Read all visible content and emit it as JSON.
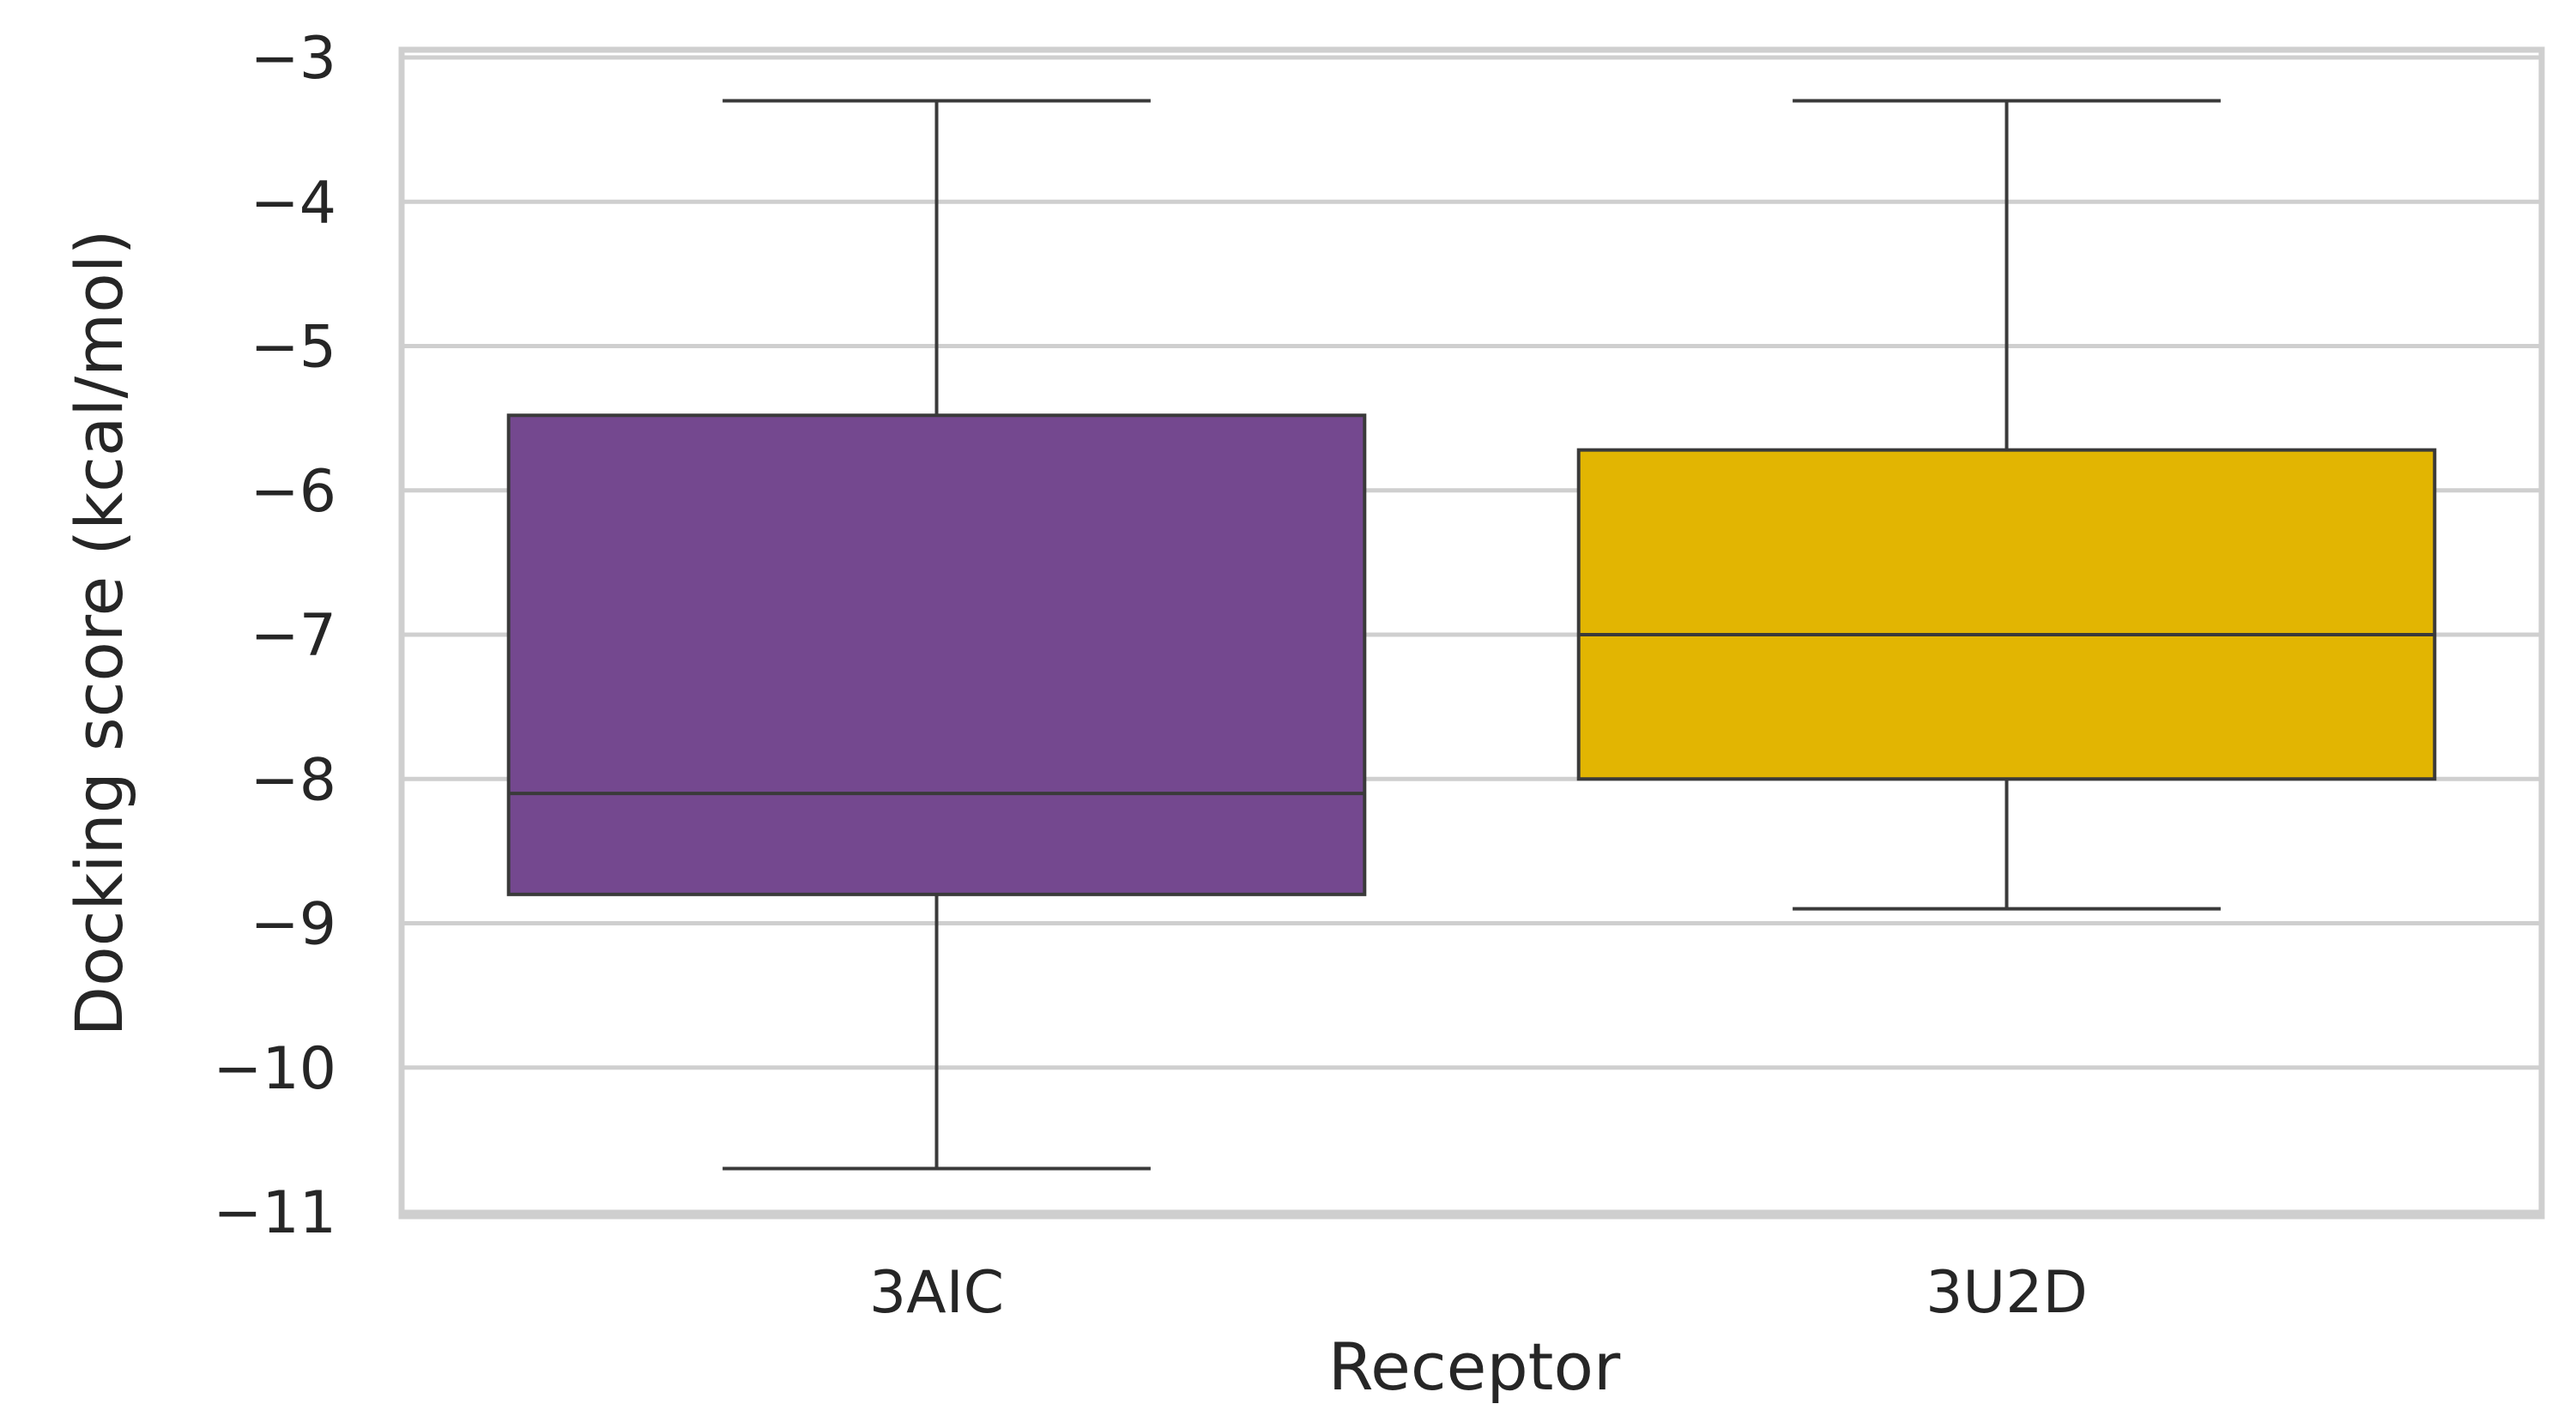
{
  "chart_data": {
    "type": "box",
    "xlabel": "Receptor",
    "ylabel": "Docking score (kcal/mol)",
    "ylim": [
      -11,
      -3
    ],
    "yticks": [
      -3,
      -4,
      -5,
      -6,
      -7,
      -8,
      -9,
      -10,
      -11
    ],
    "ytick_labels": [
      "−3",
      "−4",
      "−5",
      "−6",
      "−7",
      "−8",
      "−9",
      "−10",
      "−11"
    ],
    "grid": true,
    "categories": [
      "3AIC",
      "3U2D"
    ],
    "series": [
      {
        "category": "3AIC",
        "whisker_high": -3.3,
        "q3": -5.48,
        "median": -8.1,
        "q1": -8.8,
        "whisker_low": -10.7,
        "color": "#74488f"
      },
      {
        "category": "3U2D",
        "whisker_high": -3.3,
        "q3": -5.72,
        "median": -7.0,
        "q1": -8.0,
        "whisker_low": -8.9,
        "color": "#e2b502"
      }
    ]
  }
}
